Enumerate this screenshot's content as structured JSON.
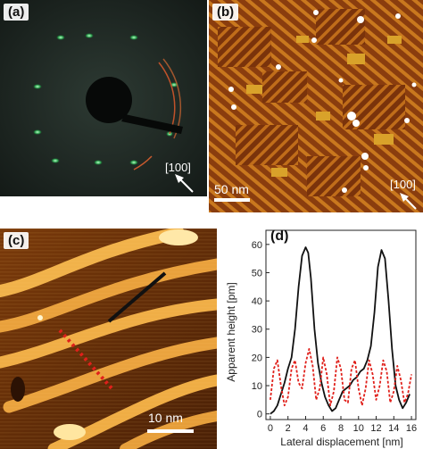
{
  "panels": {
    "a": {
      "label": "(a)",
      "direction": "[100]"
    },
    "b": {
      "label": "(b)",
      "direction": "[100]",
      "scalebar": "50 nm"
    },
    "c": {
      "label": "(c)",
      "scalebar": "10 nm"
    },
    "d": {
      "label": "(d)"
    }
  },
  "colors": {
    "black_series": "#111111",
    "red_series": "#e0201b",
    "afm_dark": "#3a1a05",
    "afm_bright": "#ffe9a0"
  },
  "chart_data": {
    "type": "line",
    "xlabel": "Lateral displacement [nm]",
    "ylabel": "Apparent height [pm]",
    "xlim": [
      -0.5,
      16.5
    ],
    "ylim": [
      -2,
      65
    ],
    "xticks": [
      0,
      2,
      4,
      6,
      8,
      10,
      12,
      14,
      16
    ],
    "yticks": [
      0,
      10,
      20,
      30,
      40,
      50,
      60
    ],
    "series": [
      {
        "style": "solid",
        "color": "#111111",
        "x": [
          0,
          0.4,
          0.8,
          1.2,
          1.6,
          2.0,
          2.4,
          2.8,
          3.2,
          3.6,
          4.0,
          4.3,
          4.6,
          5.0,
          5.4,
          5.8,
          6.2,
          6.6,
          7.0,
          7.4,
          7.8,
          8.2,
          8.6,
          9.0,
          9.4,
          9.8,
          10.2,
          10.6,
          11.0,
          11.4,
          11.8,
          12.2,
          12.6,
          13.0,
          13.4,
          13.8,
          14.2,
          14.6,
          15.0,
          15.4,
          15.8
        ],
        "y": [
          0,
          1,
          3,
          7,
          11,
          16,
          20,
          30,
          45,
          56,
          59,
          57,
          48,
          30,
          18,
          11,
          6,
          3,
          1,
          2,
          5,
          8,
          9,
          10,
          12,
          13,
          15,
          16,
          19,
          24,
          36,
          52,
          58,
          55,
          40,
          23,
          10,
          5,
          2,
          4,
          7
        ]
      },
      {
        "style": "dashed",
        "color": "#e0201b",
        "x": [
          0,
          0.4,
          0.8,
          1.2,
          1.6,
          2.0,
          2.4,
          2.8,
          3.2,
          3.6,
          4.0,
          4.4,
          4.8,
          5.2,
          5.6,
          6.0,
          6.4,
          6.8,
          7.2,
          7.6,
          8.0,
          8.4,
          8.8,
          9.2,
          9.6,
          10.0,
          10.4,
          10.8,
          11.2,
          11.6,
          12.0,
          12.4,
          12.8,
          13.2,
          13.6,
          14.0,
          14.4,
          14.8,
          15.2,
          15.6,
          16.0
        ],
        "y": [
          5,
          16,
          19,
          10,
          3,
          6,
          16,
          19,
          11,
          9,
          18,
          23,
          17,
          5,
          9,
          20,
          14,
          3,
          8,
          20,
          16,
          5,
          4,
          16,
          19,
          9,
          3,
          9,
          19,
          14,
          5,
          10,
          19,
          15,
          4,
          8,
          17,
          12,
          4,
          7,
          14
        ]
      }
    ]
  }
}
